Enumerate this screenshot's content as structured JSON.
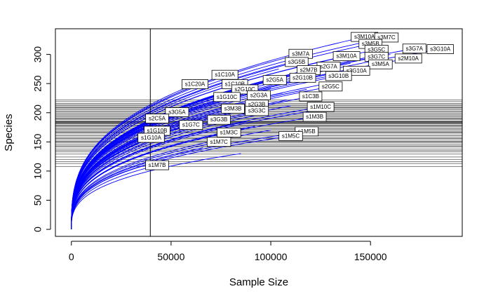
{
  "chart_data": {
    "type": "line",
    "title": "",
    "xlabel": "Sample Size",
    "ylabel": "Species",
    "xlim": [
      -8000,
      196000
    ],
    "ylim": [
      -12,
      344
    ],
    "x_ticks": [
      0,
      50000,
      100000,
      150000
    ],
    "x_tick_labels": [
      "0",
      "50000",
      "100000",
      "150000"
    ],
    "y_ticks": [
      0,
      50,
      100,
      150,
      200,
      250,
      300
    ],
    "y_tick_labels": [
      "0",
      "50",
      "100",
      "150",
      "200",
      "250",
      "300"
    ],
    "curve_color": "#0000FF",
    "reference_line_color": "#000000",
    "vertical_reference_x": 39600,
    "curve_shape": "rarefaction (species accumulation), y ≈ S_end × (x / N_end)^0.34",
    "series": [
      {
        "name": "s3M10A",
        "end": [
          147000,
          330
        ]
      },
      {
        "name": "s3M7C",
        "end": [
          158000,
          329
        ]
      },
      {
        "name": "s3M5B",
        "end": [
          150000,
          318
        ]
      },
      {
        "name": "s3G7A",
        "end": [
          172000,
          310
        ]
      },
      {
        "name": "s3G10A",
        "end": [
          185000,
          309
        ]
      },
      {
        "name": "s3G5C",
        "end": [
          153000,
          308
        ]
      },
      {
        "name": "s3G7C",
        "end": [
          153000,
          296
        ]
      },
      {
        "name": "s3M10A",
        "end": [
          138000,
          297
        ]
      },
      {
        "name": "s3M5A",
        "end": [
          155000,
          283
        ]
      },
      {
        "name": "s2M10A",
        "end": [
          169000,
          293
        ]
      },
      {
        "name": "s3M7A",
        "end": [
          115000,
          301
        ]
      },
      {
        "name": "s3G5B",
        "end": [
          113000,
          287
        ]
      },
      {
        "name": "s2G7A",
        "end": [
          129000,
          279
        ]
      },
      {
        "name": "s2M7B",
        "end": [
          119000,
          273
        ]
      },
      {
        "name": "s3G10A",
        "end": [
          143000,
          272
        ]
      },
      {
        "name": "s3G10B",
        "end": [
          134000,
          263
        ]
      },
      {
        "name": "s2G10B",
        "end": [
          116000,
          260
        ]
      },
      {
        "name": "s2G5A",
        "end": [
          102000,
          256
        ]
      },
      {
        "name": "s2G5C",
        "end": [
          130000,
          245
        ]
      },
      {
        "name": "s1C10A",
        "end": [
          77000,
          265
        ]
      },
      {
        "name": "s1C20A",
        "end": [
          62000,
          249
        ]
      },
      {
        "name": "s1C10B",
        "end": [
          82000,
          249
        ]
      },
      {
        "name": "s2G10C",
        "end": [
          87000,
          240
        ]
      },
      {
        "name": "s2G3A",
        "end": [
          94000,
          230
        ]
      },
      {
        "name": "s1G10C",
        "end": [
          78000,
          227
        ]
      },
      {
        "name": "s1C3B",
        "end": [
          120000,
          228
        ]
      },
      {
        "name": "s2G3B",
        "end": [
          93000,
          214
        ]
      },
      {
        "name": "s1M10C",
        "end": [
          125000,
          210
        ]
      },
      {
        "name": "s3M3B",
        "end": [
          81000,
          207
        ]
      },
      {
        "name": "s3G3C",
        "end": [
          93000,
          203
        ]
      },
      {
        "name": "s3G5A",
        "end": [
          53000,
          201
        ]
      },
      {
        "name": "s2C5A",
        "end": [
          43000,
          190
        ]
      },
      {
        "name": "s3G3B",
        "end": [
          74000,
          188
        ]
      },
      {
        "name": "s1M3B",
        "end": [
          122000,
          193
        ]
      },
      {
        "name": "s1G7C",
        "end": [
          60000,
          179
        ]
      },
      {
        "name": "s1G10B",
        "end": [
          43000,
          169
        ]
      },
      {
        "name": "s1M3C",
        "end": [
          79000,
          166
        ]
      },
      {
        "name": "s1M5B",
        "end": [
          118000,
          168
        ]
      },
      {
        "name": "s1G10A",
        "end": [
          40000,
          157
        ]
      },
      {
        "name": "s1M7C",
        "end": [
          74000,
          150
        ]
      },
      {
        "name": "s1M5C",
        "end": [
          110000,
          160
        ]
      },
      {
        "name": "s1M7B",
        "end": [
          43000,
          110
        ]
      }
    ],
    "extra_curve_ends": [
      [
        100000,
        242
      ],
      [
        106000,
        234
      ],
      [
        108000,
        222
      ],
      [
        110000,
        212
      ],
      [
        96000,
        198
      ],
      [
        88000,
        185
      ],
      [
        66000,
        212
      ],
      [
        70000,
        195
      ],
      [
        92000,
        177
      ],
      [
        100000,
        170
      ],
      [
        56000,
        160
      ],
      [
        66000,
        140
      ],
      [
        85000,
        130
      ],
      [
        48000,
        120
      ],
      [
        128000,
        250
      ],
      [
        140000,
        285
      ],
      [
        160000,
        300
      ],
      [
        104000,
        275
      ],
      [
        118000,
        240
      ],
      [
        124000,
        205
      ]
    ],
    "horizontal_reference_levels": [
      108,
      113,
      116,
      120,
      124,
      129,
      133,
      135,
      138,
      141,
      143,
      145,
      148,
      150,
      151,
      153,
      156,
      157,
      160,
      162,
      165,
      166,
      168,
      170,
      172,
      174,
      176,
      178,
      179,
      181,
      182,
      183,
      184,
      185,
      186,
      188,
      190,
      191,
      193,
      195,
      197,
      199,
      201,
      203,
      205,
      207,
      209,
      210,
      212,
      214,
      216,
      219,
      222
    ]
  }
}
